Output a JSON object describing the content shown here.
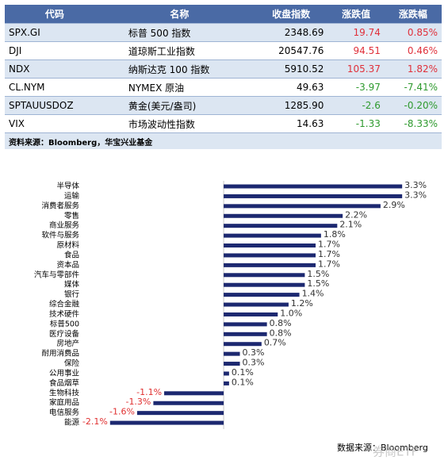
{
  "table": {
    "header": [
      "代码",
      "名称",
      "收盘指数",
      "涨跌值",
      "涨跌幅"
    ],
    "rows": [
      [
        "SPX.GI",
        "标普 500 指数",
        "2348.69",
        "19.74",
        "0.85%"
      ],
      [
        "DJI",
        "道琼斯工业指数",
        "20547.76",
        "94.51",
        "0.46%"
      ],
      [
        "NDX",
        "纳斯达克 100 指数",
        "5910.52",
        "105.37",
        "1.82%"
      ],
      [
        "CL.NYM",
        "NYMEX 原油",
        "49.63",
        "-3.97",
        "-7.41%"
      ],
      [
        "SPTAUUSDOZ",
        "黄金(美元/盎司)",
        "1285.90",
        "-2.6",
        "-0.20%"
      ],
      [
        "VIX",
        "市场波动性指数",
        "14.63",
        "-1.33",
        "-8.33%"
      ]
    ],
    "source": "资料来源：Bloomberg，华宝兴业基金"
  },
  "chart_data": {
    "type": "hbar",
    "categories": [
      "半导体",
      "运输",
      "消费者服务",
      "零售",
      "商业服务",
      "软件与服务",
      "原材料",
      "食品",
      "资本品",
      "汽车与零部件",
      "媒体",
      "银行",
      "综合金融",
      "技术硬件",
      "标普500",
      "医疗设备",
      "房地产",
      "耐用消费品",
      "保险",
      "公用事业",
      "食品烟草",
      "生物科技",
      "家庭用品",
      "电信服务",
      "能源"
    ],
    "values": [
      3.3,
      3.3,
      2.9,
      2.2,
      2.1,
      1.8,
      1.7,
      1.7,
      1.7,
      1.5,
      1.5,
      1.4,
      1.2,
      1.0,
      0.8,
      0.8,
      0.7,
      0.3,
      0.3,
      0.1,
      0.1,
      -1.1,
      -1.3,
      -1.6,
      -2.1
    ],
    "value_labels": [
      "3.3%",
      "3.3%",
      "2.9%",
      "2.2%",
      "2.1%",
      "1.8%",
      "1.7%",
      "1.7%",
      "1.7%",
      "1.5%",
      "1.5%",
      "1.4%",
      "1.2%",
      "1.0%",
      "0.8%",
      "0.8%",
      "0.7%",
      "0.3%",
      "0.3%",
      "0.1%",
      "0.1%",
      "-1.1%",
      "-1.3%",
      "-1.6%",
      "-2.1%"
    ],
    "color": "#1c2870",
    "xlim": [
      -2.2,
      3.4
    ],
    "source": "数据来源：Bloomberg",
    "watermark": "券商ETF"
  }
}
